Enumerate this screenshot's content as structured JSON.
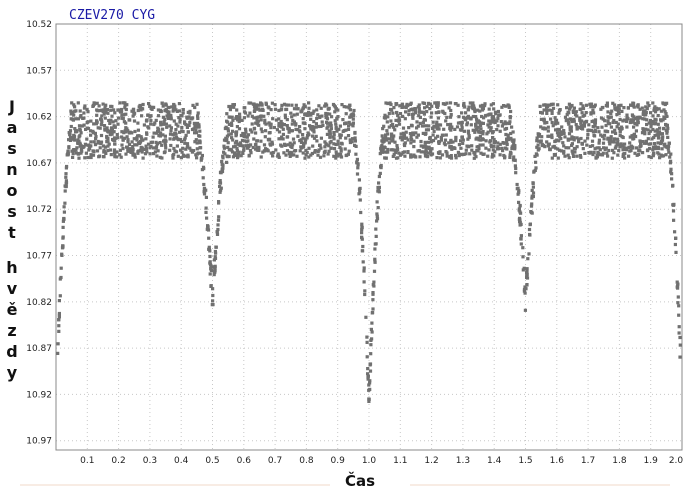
{
  "chart_data": {
    "type": "scatter",
    "title": "CZEV270 CYG",
    "xlabel": "Čas",
    "ylabel": "Jasnost hvězdy",
    "xlim": [
      0,
      2.0
    ],
    "ylim": [
      10.52,
      10.98
    ],
    "y_inverted": true,
    "grid": true,
    "marker_color": "#707070",
    "x_ticks": [
      "0.1",
      "0.2",
      "0.3",
      "0.4",
      "0.5",
      "0.6",
      "0.7",
      "0.8",
      "0.9",
      "1.0",
      "1.1",
      "1.2",
      "1.3",
      "1.4",
      "1.5",
      "1.6",
      "1.7",
      "1.8",
      "1.9",
      "2.0"
    ],
    "y_ticks": [
      "10.52",
      "10.57",
      "10.62",
      "10.67",
      "10.72",
      "10.77",
      "10.82",
      "10.87",
      "10.92",
      "10.97"
    ],
    "light_curve": {
      "maximum_level": 10.635,
      "scatter_band": [
        10.605,
        10.665
      ],
      "primary_minima": [
        {
          "phase": 0.0,
          "depth": 10.925
        },
        {
          "phase": 1.0,
          "depth": 10.925
        },
        {
          "phase": 2.0,
          "depth": 10.925
        }
      ],
      "secondary_minima": [
        {
          "phase": 0.5,
          "depth": 10.82
        },
        {
          "phase": 1.5,
          "depth": 10.82
        }
      ],
      "eclipse_half_width": 0.05
    }
  }
}
